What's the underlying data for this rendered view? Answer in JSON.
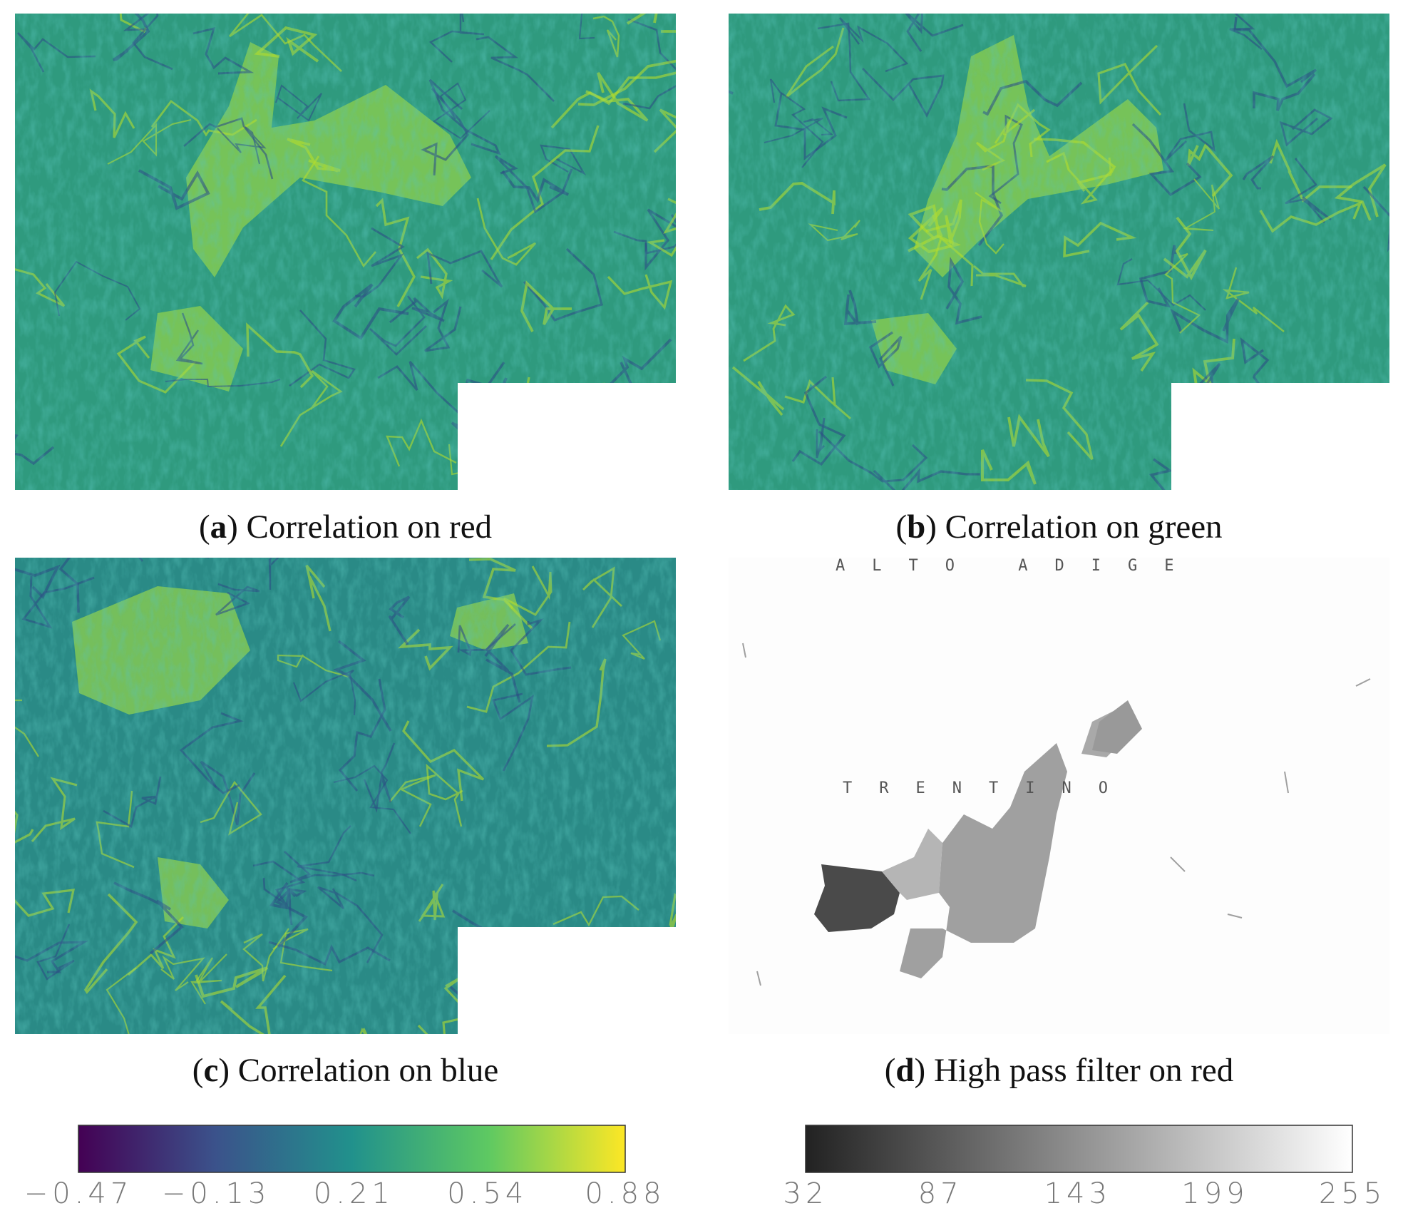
{
  "panels": [
    {
      "caption": {
        "open": "(",
        "label": "a",
        "close": ")",
        "text": "Correlation on red"
      }
    },
    {
      "caption": {
        "open": "(",
        "label": "b",
        "close": ")",
        "text": "Correlation on green"
      }
    },
    {
      "caption": {
        "open": "(",
        "label": "c",
        "close": ")",
        "text": "Correlation on blue"
      }
    },
    {
      "caption": {
        "open": "(",
        "label": "d",
        "close": ")",
        "text": "High pass filter on red"
      },
      "map_labels": [
        "ALTO ADIGE",
        "TRENTINO"
      ]
    }
  ],
  "colorbars": [
    {
      "colormap": "viridis",
      "lim": [
        -0.47,
        0.88
      ],
      "ticks": [
        {
          "value": -0.47,
          "label": "−0.47"
        },
        {
          "value": -0.13,
          "label": "−0.13"
        },
        0.21,
        0.54,
        0.88
      ]
    },
    {
      "colormap": "gray",
      "lim": [
        32,
        255
      ],
      "ticks": [
        32,
        87,
        143,
        199,
        255
      ]
    }
  ]
}
